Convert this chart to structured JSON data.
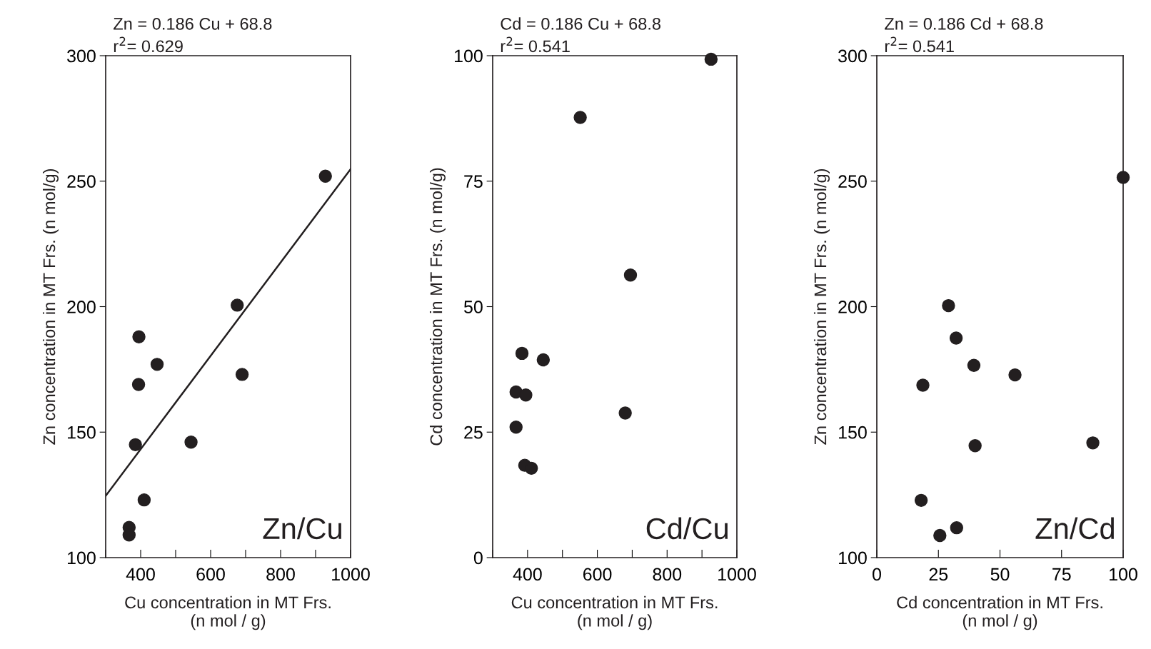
{
  "chart_data": [
    {
      "type": "scatter",
      "title": "Zn = 0.186 Cu + 68.8",
      "subtitle": "r$^{2}$= 0.629",
      "xlabel": "Cu concentration in MT Frs.\n(n mol / g)",
      "ylabel": "Zn concentration in MT Frs. (n mol/g)",
      "annotations": [
        "Zn/Cu"
      ],
      "marker": "circle",
      "grid": false,
      "legend": false,
      "xlim": [
        300,
        1000
      ],
      "xticks": [
        {
          "value": 300,
          "label": null
        },
        400,
        {
          "value": 500,
          "label": null
        },
        600,
        {
          "value": 700,
          "label": null
        },
        800,
        {
          "value": 900,
          "label": null
        },
        1000
      ],
      "ylim": [
        100,
        300
      ],
      "yticks": [
        100,
        150,
        200,
        250,
        300
      ],
      "series": [
        {
          "color": "#231f20",
          "x": [
            928,
            676,
            395,
            447,
            394,
            690,
            385,
            544,
            410,
            367,
            367
          ],
          "values": [
            252,
            200.6,
            188,
            177,
            169,
            173,
            145,
            146,
            123,
            112,
            109
          ]
        },
        {
          "type": "line",
          "marker": "none",
          "color": "#231f20",
          "x": [
            300,
            1000
          ],
          "values": [
            124.6,
            254.8
          ]
        }
      ]
    },
    {
      "type": "scatter",
      "title": "Cd = 0.186 Cu + 68.8",
      "subtitle": "r$^{2}$= 0.541",
      "xlabel": "Cu concentration in MT Frs.\n(n mol / g)",
      "ylabel": "Cd concentration in MT Frs. (n mol/g)",
      "annotations": [
        "Cd/Cu"
      ],
      "marker": "circle",
      "grid": false,
      "legend": false,
      "xlim": [
        300,
        1000
      ],
      "xticks": [
        {
          "value": 300,
          "label": null
        },
        400,
        {
          "value": 500,
          "label": null
        },
        600,
        {
          "value": 700,
          "label": null
        },
        800,
        {
          "value": 900,
          "label": null
        },
        1000
      ],
      "ylim": [
        0,
        100
      ],
      "yticks": [
        0,
        25,
        50,
        75,
        100
      ],
      "series": [
        {
          "color": "#231f20",
          "x": [
            926,
            551,
            695,
            384,
            445,
            367,
            395,
            680,
            367,
            392,
            411
          ],
          "values": [
            99.3,
            87.7,
            56.3,
            40.7,
            39.4,
            33.0,
            32.4,
            28.8,
            26.0,
            18.4,
            17.8
          ]
        }
      ]
    },
    {
      "type": "scatter",
      "title": "Zn = 0.186 Cd + 68.8",
      "subtitle": "r$^{2}$= 0.541",
      "xlabel": "Cd concentration in MT Frs.\n(n mol / g)",
      "ylabel": "Zn concentration in MT Frs. (n mol/g)",
      "annotations": [
        "Zn/Cd"
      ],
      "marker": "circle",
      "grid": false,
      "legend": false,
      "xlim": [
        0,
        100
      ],
      "xticks": [
        0,
        25,
        50,
        75,
        100
      ],
      "ylim": [
        100,
        300
      ],
      "yticks": [
        100,
        150,
        200,
        250,
        300
      ],
      "series": [
        {
          "color": "#231f20",
          "x": [
            100,
            29.1,
            32.2,
            39.4,
            56.1,
            18.7,
            39.9,
            87.7,
            18.0,
            32.4,
            25.6
          ],
          "values": [
            251.5,
            200.4,
            187.5,
            176.6,
            172.8,
            168.7,
            144.6,
            145.7,
            122.8,
            111.9,
            108.8
          ]
        }
      ]
    }
  ]
}
